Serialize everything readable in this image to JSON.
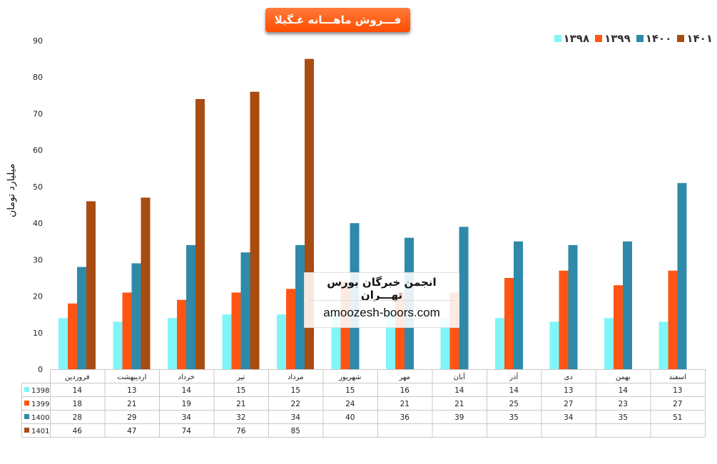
{
  "chart_data": {
    "type": "bar",
    "title": "فـــروش ماهـــانه غـگیلا",
    "ylabel": "میلیارد تومان",
    "xlabel": "",
    "ylim": [
      0,
      90
    ],
    "yticks": [
      0,
      10,
      20,
      30,
      40,
      50,
      60,
      70,
      80,
      90
    ],
    "categories": [
      "فروردین",
      "اردیبهشت",
      "خرداد",
      "تیر",
      "مرداد",
      "شهریور",
      "مهر",
      "آبان",
      "آذر",
      "دی",
      "بهمن",
      "اسفند"
    ],
    "legend_placement": "top-right",
    "grid": false,
    "data_table": true,
    "series": [
      {
        "name": "1398",
        "legend_label": "۱۳۹۸",
        "color": "#7ff5f8",
        "values": [
          14,
          13,
          14,
          15,
          15,
          15,
          16,
          14,
          14,
          13,
          14,
          13
        ]
      },
      {
        "name": "1399",
        "legend_label": "۱۳۹۹",
        "color": "#ff5514",
        "values": [
          18,
          21,
          19,
          21,
          22,
          24,
          21,
          21,
          25,
          27,
          23,
          27
        ]
      },
      {
        "name": "1400",
        "legend_label": "۱۴۰۰",
        "color": "#2e8aa8",
        "values": [
          28,
          29,
          34,
          32,
          34,
          40,
          36,
          39,
          35,
          34,
          35,
          51
        ]
      },
      {
        "name": "1401",
        "legend_label": "۱۴۰۱",
        "color": "#a84c12",
        "values": [
          46,
          47,
          74,
          76,
          85,
          null,
          null,
          null,
          null,
          null,
          null,
          null
        ]
      }
    ]
  },
  "watermark": {
    "title": "انجمن خبرگان بورس تهـــران",
    "url": "amoozesh-boors.com"
  }
}
